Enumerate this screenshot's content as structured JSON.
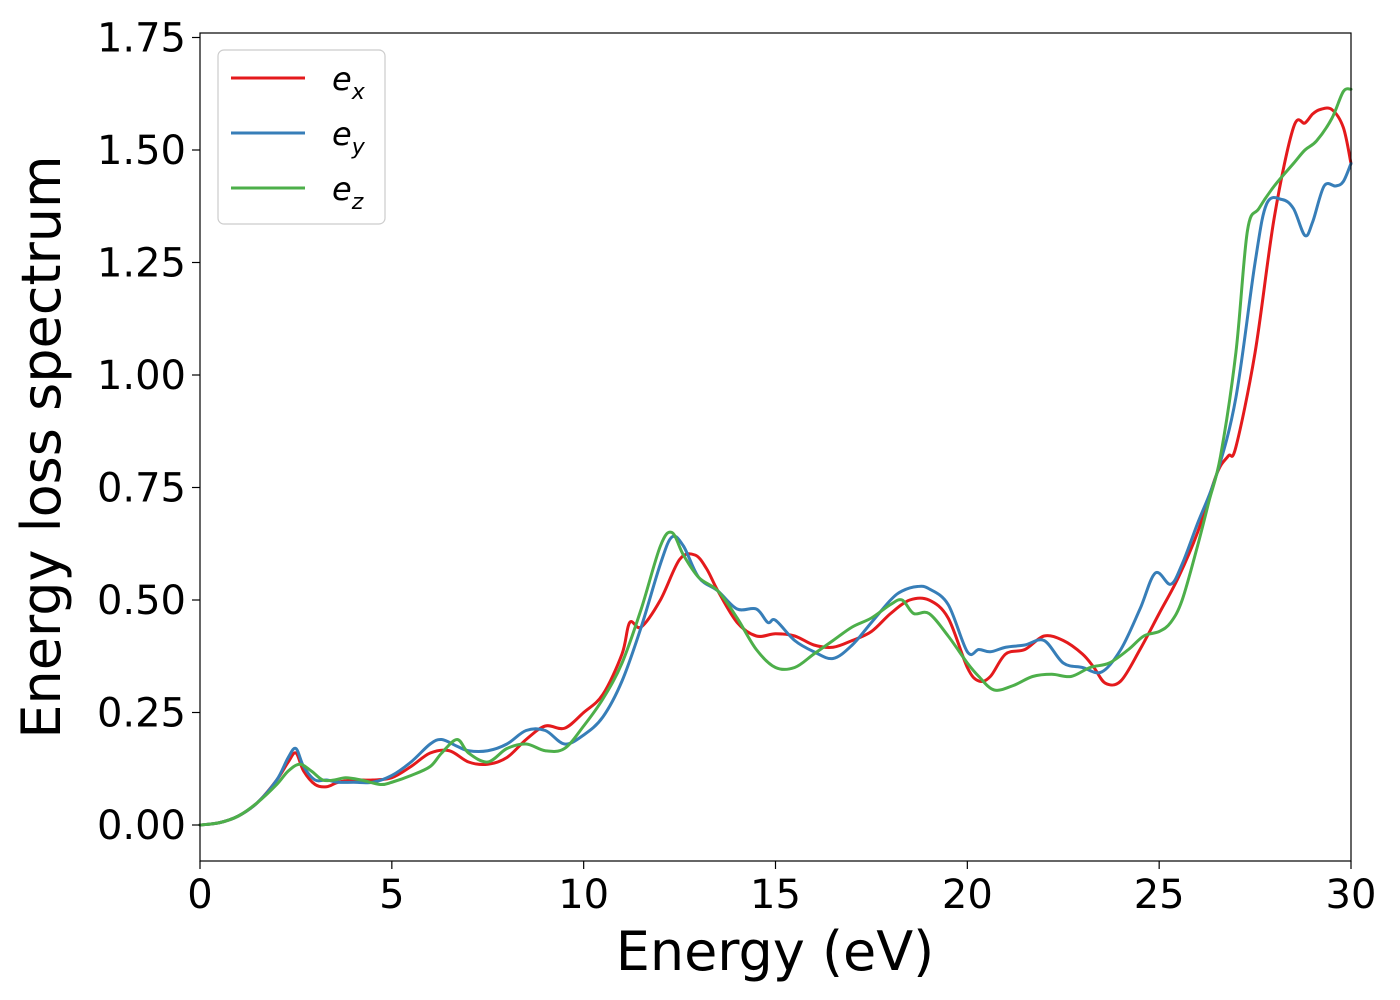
{
  "chart_data": {
    "type": "line",
    "xlabel": "Energy (eV)",
    "ylabel": "Energy loss spectrum",
    "xlim": [
      0,
      30
    ],
    "ylim": [
      -0.08,
      1.76
    ],
    "xticks": [
      0,
      5,
      10,
      15,
      20,
      25,
      30
    ],
    "xtick_labels": [
      "0",
      "5",
      "10",
      "15",
      "20",
      "25",
      "30"
    ],
    "yticks": [
      0.0,
      0.25,
      0.5,
      0.75,
      1.0,
      1.25,
      1.5,
      1.75
    ],
    "ytick_labels": [
      "0.00",
      "0.25",
      "0.50",
      "0.75",
      "1.00",
      "1.25",
      "1.50",
      "1.75"
    ],
    "grid": false,
    "legend_position": "top-left",
    "series": [
      {
        "name": "e_x",
        "label_base": "e",
        "label_sub": "x",
        "color": "#e41a1c",
        "x": [
          0,
          0.5,
          1,
          1.5,
          2,
          2.3,
          2.5,
          2.7,
          3,
          3.3,
          3.6,
          4,
          4.5,
          5,
          5.5,
          6,
          6.5,
          7,
          7.5,
          8,
          8.5,
          9,
          9.5,
          10,
          10.5,
          11,
          11.2,
          11.5,
          12,
          12.5,
          12.9,
          13.2,
          13.5,
          14,
          14.5,
          15,
          15.5,
          16,
          16.5,
          17,
          17.5,
          18,
          18.5,
          19,
          19.5,
          20,
          20.3,
          20.6,
          21,
          21.5,
          22,
          22.5,
          23,
          23.3,
          23.6,
          24,
          24.5,
          25,
          25.5,
          26,
          26.5,
          26.8,
          27,
          27.5,
          28,
          28.5,
          28.8,
          29,
          29.2,
          29.5,
          29.8,
          30
        ],
        "y": [
          0,
          0.005,
          0.02,
          0.05,
          0.1,
          0.14,
          0.16,
          0.12,
          0.09,
          0.085,
          0.095,
          0.1,
          0.1,
          0.105,
          0.13,
          0.16,
          0.165,
          0.14,
          0.135,
          0.15,
          0.19,
          0.22,
          0.215,
          0.25,
          0.29,
          0.38,
          0.45,
          0.44,
          0.5,
          0.59,
          0.6,
          0.57,
          0.52,
          0.45,
          0.42,
          0.425,
          0.42,
          0.4,
          0.395,
          0.41,
          0.43,
          0.47,
          0.5,
          0.5,
          0.46,
          0.35,
          0.32,
          0.33,
          0.38,
          0.39,
          0.42,
          0.41,
          0.38,
          0.35,
          0.315,
          0.32,
          0.39,
          0.47,
          0.55,
          0.65,
          0.78,
          0.82,
          0.84,
          1.05,
          1.35,
          1.55,
          1.56,
          1.58,
          1.59,
          1.59,
          1.55,
          1.47
        ]
      },
      {
        "name": "e_y",
        "label_base": "e",
        "label_sub": "y",
        "color": "#377eb8",
        "x": [
          0,
          0.5,
          1,
          1.5,
          2,
          2.3,
          2.5,
          2.7,
          3,
          3.3,
          3.6,
          4,
          4.5,
          5,
          5.5,
          6,
          6.3,
          6.7,
          7,
          7.5,
          8,
          8.5,
          9,
          9.5,
          10,
          10.5,
          11,
          11.5,
          12,
          12.3,
          12.6,
          13,
          13.5,
          14,
          14.5,
          14.8,
          15,
          15.5,
          16,
          16.5,
          17,
          17.5,
          18,
          18.3,
          18.7,
          19,
          19.5,
          20,
          20.3,
          20.6,
          21,
          21.5,
          22,
          22.5,
          23,
          23.5,
          24,
          24.5,
          24.9,
          25.3,
          25.6,
          26,
          26.5,
          27,
          27.5,
          27.8,
          28.2,
          28.5,
          28.8,
          29,
          29.3,
          29.6,
          29.8,
          30
        ],
        "y": [
          0,
          0.005,
          0.02,
          0.05,
          0.1,
          0.15,
          0.17,
          0.13,
          0.1,
          0.1,
          0.095,
          0.095,
          0.095,
          0.11,
          0.14,
          0.18,
          0.19,
          0.175,
          0.165,
          0.165,
          0.18,
          0.21,
          0.21,
          0.18,
          0.2,
          0.24,
          0.32,
          0.44,
          0.58,
          0.64,
          0.62,
          0.55,
          0.52,
          0.48,
          0.48,
          0.45,
          0.455,
          0.41,
          0.385,
          0.37,
          0.4,
          0.45,
          0.5,
          0.52,
          0.53,
          0.525,
          0.49,
          0.385,
          0.39,
          0.385,
          0.395,
          0.4,
          0.41,
          0.36,
          0.35,
          0.34,
          0.39,
          0.48,
          0.56,
          0.535,
          0.58,
          0.67,
          0.78,
          0.95,
          1.25,
          1.38,
          1.39,
          1.37,
          1.31,
          1.34,
          1.42,
          1.42,
          1.43,
          1.47
        ]
      },
      {
        "name": "e_z",
        "label_base": "e",
        "label_sub": "z",
        "color": "#4daf4a",
        "x": [
          0,
          0.5,
          1,
          1.5,
          2,
          2.3,
          2.6,
          2.9,
          3.2,
          3.5,
          3.8,
          4.2,
          4.7,
          5,
          5.5,
          6,
          6.3,
          6.7,
          7,
          7.5,
          8,
          8.5,
          9,
          9.5,
          10,
          10.5,
          11,
          11.5,
          12,
          12.3,
          12.6,
          13,
          13.5,
          14,
          14.5,
          15,
          15.5,
          16,
          16.5,
          17,
          17.5,
          18,
          18.3,
          18.6,
          19,
          19.5,
          20,
          20.3,
          20.7,
          21.2,
          21.7,
          22.2,
          22.7,
          23.2,
          23.7,
          24.2,
          24.6,
          25,
          25.3,
          25.6,
          26,
          26.3,
          26.6,
          27,
          27.3,
          27.6,
          28,
          28.5,
          28.8,
          29.1,
          29.5,
          29.8,
          30
        ],
        "y": [
          0,
          0.005,
          0.02,
          0.05,
          0.09,
          0.12,
          0.135,
          0.12,
          0.1,
          0.1,
          0.105,
          0.1,
          0.09,
          0.095,
          0.11,
          0.13,
          0.16,
          0.19,
          0.16,
          0.14,
          0.17,
          0.18,
          0.165,
          0.17,
          0.22,
          0.28,
          0.36,
          0.48,
          0.62,
          0.65,
          0.6,
          0.55,
          0.52,
          0.46,
          0.39,
          0.35,
          0.35,
          0.38,
          0.41,
          0.44,
          0.46,
          0.49,
          0.5,
          0.47,
          0.47,
          0.42,
          0.36,
          0.33,
          0.3,
          0.31,
          0.33,
          0.335,
          0.33,
          0.35,
          0.36,
          0.39,
          0.42,
          0.43,
          0.45,
          0.5,
          0.62,
          0.72,
          0.82,
          1.05,
          1.32,
          1.37,
          1.42,
          1.47,
          1.5,
          1.52,
          1.57,
          1.63,
          1.635
        ]
      }
    ]
  }
}
